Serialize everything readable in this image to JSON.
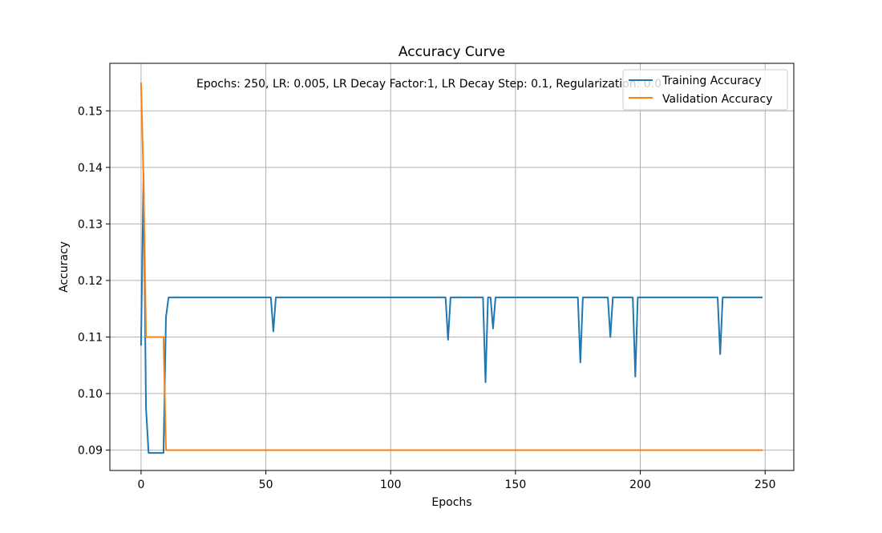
{
  "chart_data": {
    "type": "line",
    "title": "Accuracy Curve",
    "xlabel": "Epochs",
    "ylabel": "Accuracy",
    "annotation": "Epochs: 250, LR: 0.005, LR Decay Factor:1, LR Decay Step: 0.1, Regularization: 0.0",
    "xlim": [
      -12.5,
      261.5
    ],
    "ylim": [
      0.0864,
      0.1584
    ],
    "xticks": [
      0,
      50,
      100,
      150,
      200,
      250
    ],
    "yticks": [
      0.09,
      0.1,
      0.11,
      0.12,
      0.13,
      0.14,
      0.15
    ],
    "ytick_labels": [
      "0.09",
      "0.10",
      "0.11",
      "0.12",
      "0.13",
      "0.14",
      "0.15"
    ],
    "grid": true,
    "legend_position": "top-right",
    "colors": {
      "training": "#1f77b4",
      "validation": "#ff7f0e"
    },
    "series": [
      {
        "name": "Training Accuracy",
        "color": "#1f77b4",
        "x": [
          0,
          1,
          2,
          3,
          9,
          10,
          11,
          52,
          53,
          54,
          122,
          123,
          124,
          137,
          138,
          139,
          140,
          141,
          142,
          175,
          176,
          177,
          187,
          188,
          189,
          197,
          198,
          199,
          231,
          232,
          233,
          249
        ],
        "y": [
          0.1085,
          0.139,
          0.0975,
          0.0895,
          0.0895,
          0.1135,
          0.117,
          0.117,
          0.111,
          0.117,
          0.117,
          0.1095,
          0.117,
          0.117,
          0.102,
          0.117,
          0.117,
          0.1115,
          0.117,
          0.117,
          0.1055,
          0.117,
          0.117,
          0.11,
          0.117,
          0.117,
          0.103,
          0.117,
          0.117,
          0.107,
          0.117,
          0.117
        ]
      },
      {
        "name": "Validation Accuracy",
        "color": "#ff7f0e",
        "x": [
          0,
          1,
          2,
          9,
          10,
          249
        ],
        "y": [
          0.155,
          0.138,
          0.11,
          0.11,
          0.09,
          0.09
        ]
      }
    ]
  }
}
